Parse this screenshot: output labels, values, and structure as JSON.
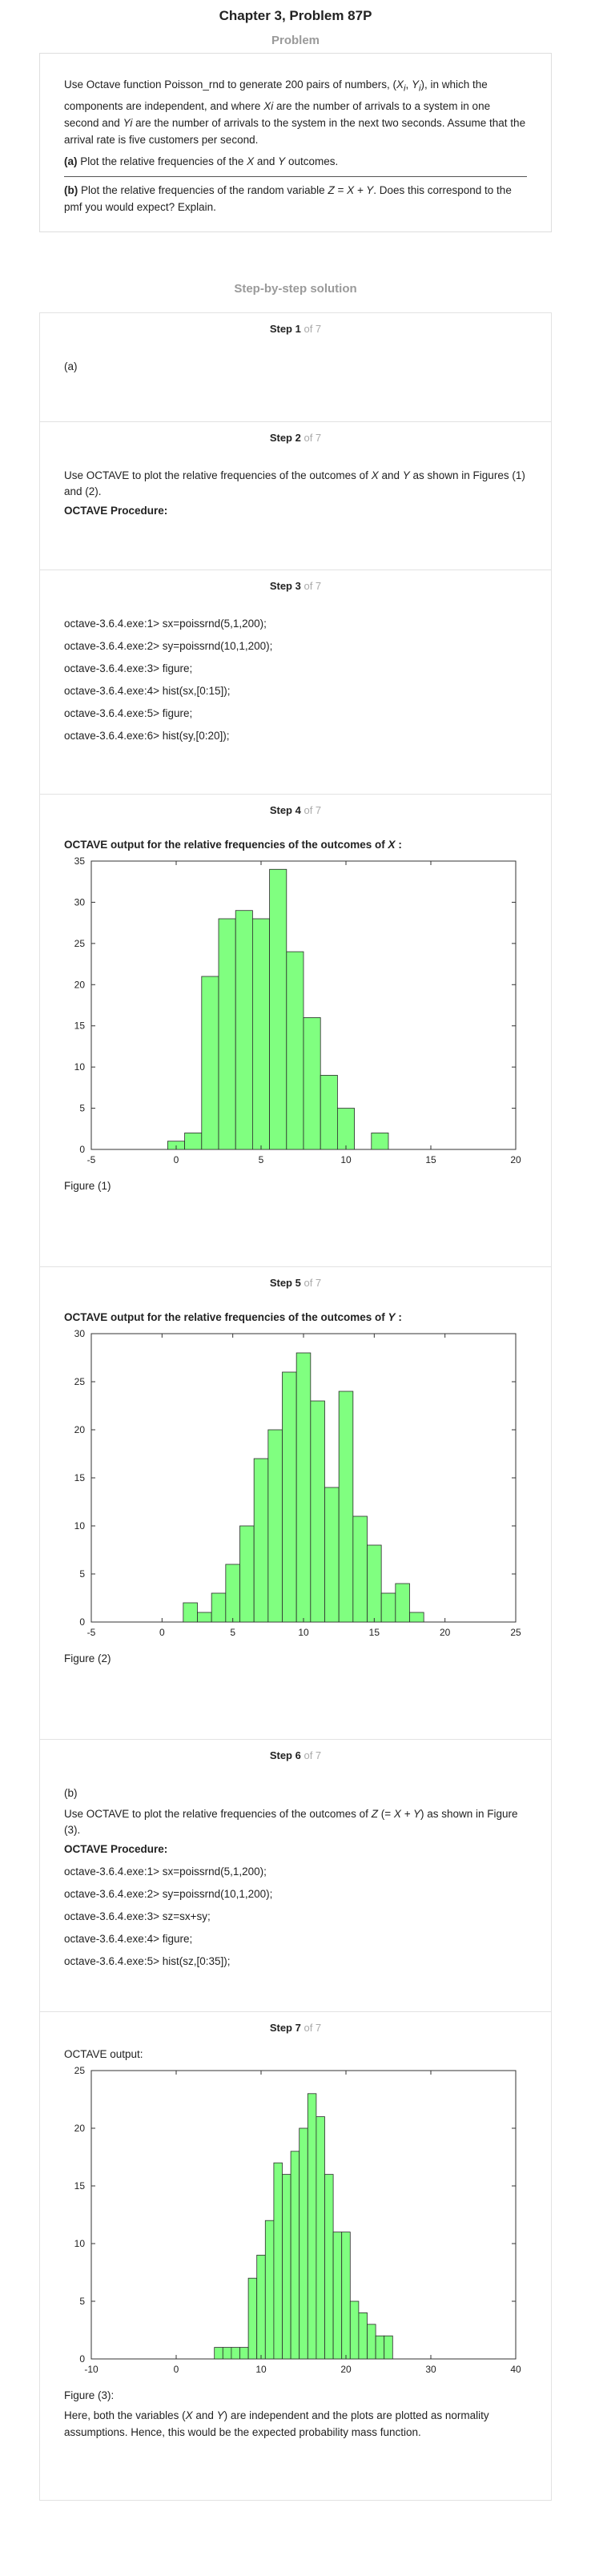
{
  "header": {
    "title": "Chapter 3, Problem 87P",
    "problem_label": "Problem"
  },
  "problem": {
    "intro_a": "Use Octave function Poisson_rnd to generate 200 pairs of numbers, (",
    "intro_x": "X",
    "intro_i1": "i",
    "intro_comma": ", ",
    "intro_y": "Y",
    "intro_i2": "i",
    "intro_b": "), in which the components are independent, and where ",
    "intro_xi": "Xi",
    "intro_c": " are the number of arrivals to a system in one second and ",
    "intro_yi": "Yi",
    "intro_d": " are the number of arrivals to the system in the next two seconds. Assume that the arrival rate is five customers per second.",
    "part_a_label": "(a)",
    "part_a_text_1": " Plot the relative frequencies of the ",
    "part_a_x": "X",
    "part_a_and": " and ",
    "part_a_y": "Y",
    "part_a_text_2": " outcomes.",
    "part_b_label": "(b)",
    "part_b_text_1": " Plot the relative frequencies of the random variable ",
    "part_b_formula": "Z = X + Y",
    "part_b_text_2": ". Does this correspond to the pmf you would expect? Explain."
  },
  "solution_label": "Step-by-step solution",
  "steps": {
    "s1": {
      "num": "Step 1",
      "of": "of 7",
      "body": "(a)"
    },
    "s2": {
      "num": "Step 2",
      "of": "of 7",
      "text_1": "Use OCTAVE to plot the relative frequencies of the outcomes of ",
      "x": "X",
      "and": " and ",
      "y": "Y",
      "text_2": " as shown in Figures (1) and (2).",
      "procedure": "OCTAVE Procedure:"
    },
    "s3": {
      "num": "Step 3",
      "of": "of 7",
      "lines": [
        "octave-3.6.4.exe:1> sx=poissrnd(5,1,200);",
        "octave-3.6.4.exe:2> sy=poissrnd(10,1,200);",
        "octave-3.6.4.exe:3> figure;",
        "octave-3.6.4.exe:4> hist(sx,[0:15]);",
        "octave-3.6.4.exe:5> figure;",
        "octave-3.6.4.exe:6> hist(sy,[0:20]);"
      ]
    },
    "s4": {
      "num": "Step 4",
      "of": "of 7",
      "heading_1": "OCTAVE output for the relative frequencies of the outcomes of ",
      "heading_var": "X",
      "heading_2": " :",
      "figure": "Figure (1)"
    },
    "s5": {
      "num": "Step 5",
      "of": "of 7",
      "heading_1": "OCTAVE output for the relative frequencies of the outcomes of ",
      "heading_var": "Y",
      "heading_2": " :",
      "figure": "Figure (2)"
    },
    "s6": {
      "num": "Step 6",
      "of": "of 7",
      "part": "(b)",
      "text_1": "Use OCTAVE to plot the relative frequencies of the outcomes of ",
      "z": "Z",
      "text_2": " (= ",
      "xy": "X + Y",
      "text_3": ") as shown in Figure (3).",
      "procedure": "OCTAVE Procedure:",
      "lines": [
        "octave-3.6.4.exe:1> sx=poissrnd(5,1,200);",
        "octave-3.6.4.exe:2> sy=poissrnd(10,1,200);",
        "octave-3.6.4.exe:3> sz=sx+sy;",
        "octave-3.6.4.exe:4> figure;",
        "octave-3.6.4.exe:5> hist(sz,[0:35]);"
      ]
    },
    "s7": {
      "num": "Step 7",
      "of": "of 7",
      "output_label": "OCTAVE output:",
      "figure": "Figure (3):",
      "conclusion_1": "Here, both the variables (",
      "conclusion_x": "X",
      "conclusion_and": " and ",
      "conclusion_y": "Y",
      "conclusion_2": ") are independent and the plots are plotted as normality assumptions. Hence, this would be the expected probability mass function."
    }
  },
  "colors": {
    "bar_fill": "#80ff80",
    "bar_stroke": "#2a2a2a"
  },
  "chart_data": [
    {
      "type": "bar",
      "title": "",
      "xlabel": "",
      "ylabel": "",
      "xlim": [
        -5,
        20
      ],
      "ylim": [
        0,
        35
      ],
      "xticks": [
        -5,
        0,
        5,
        10,
        15,
        20
      ],
      "yticks": [
        0,
        5,
        10,
        15,
        20,
        25,
        30,
        35
      ],
      "categories": [
        0,
        1,
        2,
        3,
        4,
        5,
        6,
        7,
        8,
        9,
        10,
        11,
        12,
        13,
        14,
        15
      ],
      "values": [
        1,
        2,
        21,
        28,
        29,
        28,
        34,
        24,
        16,
        9,
        5,
        0,
        2,
        0,
        0,
        0
      ],
      "grid": false,
      "legend": "none"
    },
    {
      "type": "bar",
      "title": "",
      "xlabel": "",
      "ylabel": "",
      "xlim": [
        -5,
        25
      ],
      "ylim": [
        0,
        30
      ],
      "xticks": [
        -5,
        0,
        5,
        10,
        15,
        20,
        25
      ],
      "yticks": [
        0,
        5,
        10,
        15,
        20,
        25,
        30
      ],
      "categories": [
        0,
        1,
        2,
        3,
        4,
        5,
        6,
        7,
        8,
        9,
        10,
        11,
        12,
        13,
        14,
        15,
        16,
        17,
        18,
        19,
        20
      ],
      "values": [
        0,
        0,
        2,
        1,
        3,
        6,
        10,
        17,
        20,
        26,
        28,
        23,
        14,
        24,
        11,
        8,
        3,
        4,
        1,
        0,
        0
      ],
      "grid": false,
      "legend": "none"
    },
    {
      "type": "bar",
      "title": "",
      "xlabel": "",
      "ylabel": "",
      "xlim": [
        -10,
        40
      ],
      "ylim": [
        0,
        25
      ],
      "xticks": [
        -10,
        0,
        10,
        20,
        30,
        40
      ],
      "yticks": [
        0,
        5,
        10,
        15,
        20,
        25
      ],
      "categories": [
        0,
        1,
        2,
        3,
        4,
        5,
        6,
        7,
        8,
        9,
        10,
        11,
        12,
        13,
        14,
        15,
        16,
        17,
        18,
        19,
        20,
        21,
        22,
        23,
        24,
        25,
        26,
        27,
        28,
        29,
        30,
        31,
        32,
        33,
        34,
        35
      ],
      "values": [
        0,
        0,
        0,
        0,
        0,
        1,
        1,
        1,
        1,
        7,
        9,
        12,
        17,
        16,
        18,
        20,
        23,
        21,
        16,
        11,
        11,
        5,
        4,
        3,
        2,
        2,
        0,
        0,
        0,
        0,
        0,
        0,
        0,
        0,
        0,
        0
      ],
      "grid": false,
      "legend": "none"
    }
  ]
}
